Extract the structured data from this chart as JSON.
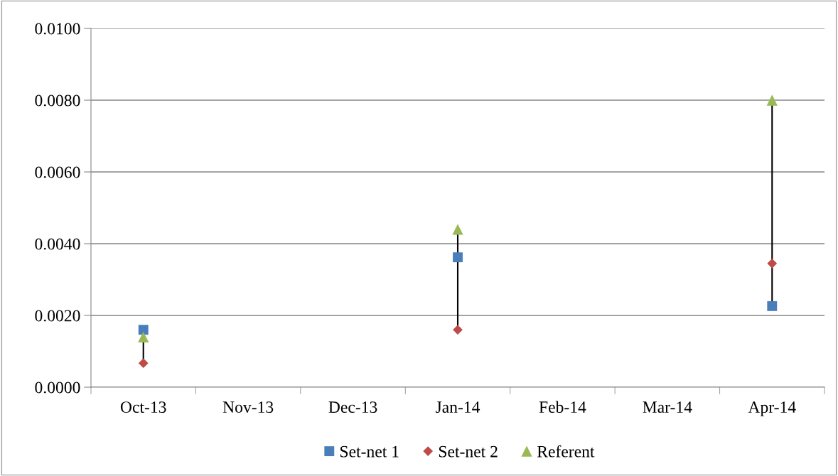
{
  "chart_data": {
    "type": "scatter",
    "categories": [
      "Oct-13",
      "Nov-13",
      "Dec-13",
      "Jan-14",
      "Feb-14",
      "Mar-14",
      "Apr-14"
    ],
    "series": [
      {
        "name": "Set-net 1",
        "color": "#4a7ebb",
        "marker": "square",
        "values": [
          0.0016,
          null,
          null,
          0.00362,
          null,
          null,
          0.00226
        ]
      },
      {
        "name": "Set-net 2",
        "color": "#be4b48",
        "marker": "diamond",
        "values": [
          0.00067,
          null,
          null,
          0.0016,
          null,
          null,
          0.00345
        ]
      },
      {
        "name": "Referent",
        "color": "#98b954",
        "marker": "triangle",
        "values": [
          0.0014,
          null,
          null,
          0.0044,
          null,
          null,
          0.008
        ]
      }
    ],
    "ylim": [
      0,
      0.01
    ],
    "yticks": [
      {
        "value": 0,
        "label": "0.0000"
      },
      {
        "value": 0.002,
        "label": "0.0020"
      },
      {
        "value": 0.004,
        "label": "0.0040"
      },
      {
        "value": 0.006,
        "label": "0.0060"
      },
      {
        "value": 0.008,
        "label": "0.0080"
      },
      {
        "value": 0.01,
        "label": "0.0100"
      }
    ],
    "grid": "y",
    "legend": "bottom"
  }
}
